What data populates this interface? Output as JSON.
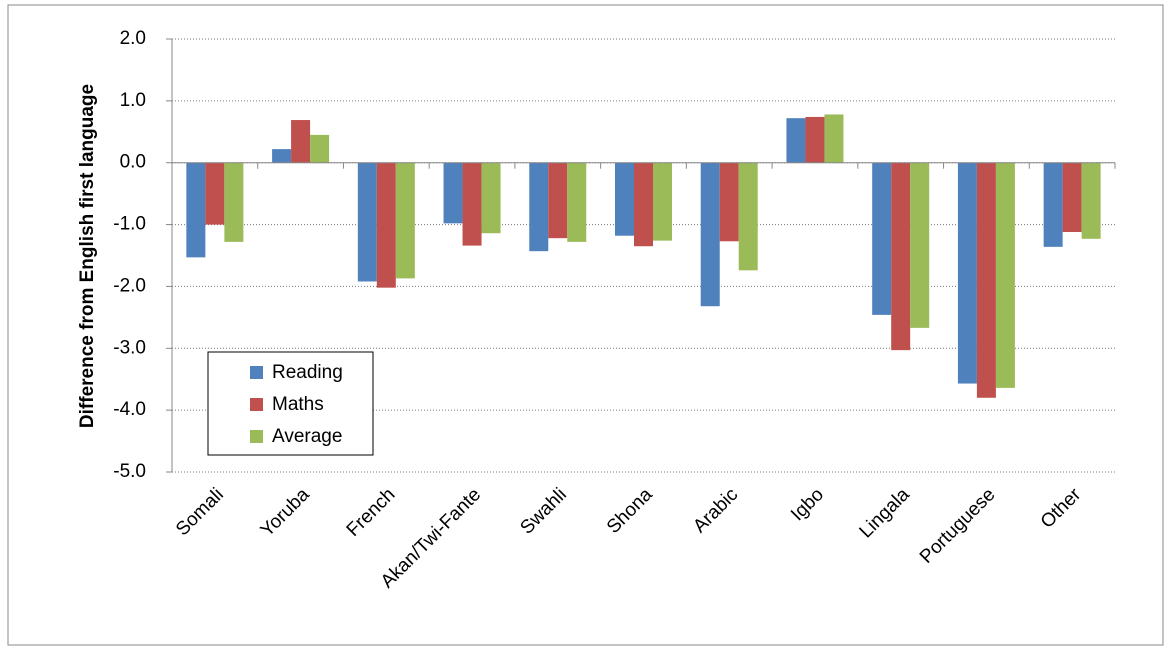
{
  "chart_data": {
    "type": "bar",
    "y_label": "Difference from English first language",
    "categories": [
      "Somali",
      "Yoruba",
      "French",
      "Akan/Twi-Fante",
      "Swahli",
      "Shona",
      "Arabic",
      "Igbo",
      "Lingala",
      "Portuguese",
      "Other"
    ],
    "series": [
      {
        "name": "Reading",
        "color": "#4f81bd",
        "values": [
          -1.53,
          0.22,
          -1.92,
          -0.98,
          -1.43,
          -1.18,
          -2.32,
          0.72,
          -2.46,
          -3.57,
          -1.36
        ]
      },
      {
        "name": "Maths",
        "color": "#c0504d",
        "values": [
          -1.0,
          0.69,
          -2.02,
          -1.34,
          -1.22,
          -1.35,
          -1.27,
          0.74,
          -3.03,
          -3.8,
          -1.12
        ]
      },
      {
        "name": "Average",
        "color": "#9bbb59",
        "values": [
          -1.28,
          0.45,
          -1.87,
          -1.14,
          -1.28,
          -1.26,
          -1.74,
          0.78,
          -2.67,
          -3.64,
          -1.23
        ]
      }
    ],
    "ylim": [
      -5,
      2
    ],
    "yticks": [
      {
        "value": 2,
        "label": "2.0"
      },
      {
        "value": 1,
        "label": "1.0"
      },
      {
        "value": 0,
        "label": "0.0"
      },
      {
        "value": -1,
        "label": "-1.0"
      },
      {
        "value": -2,
        "label": "-2.0"
      },
      {
        "value": -3,
        "label": "-3.0"
      },
      {
        "value": -4,
        "label": "-4.0"
      },
      {
        "value": -5,
        "label": "-5.0"
      }
    ],
    "grid": true,
    "legend": "lower-left"
  }
}
